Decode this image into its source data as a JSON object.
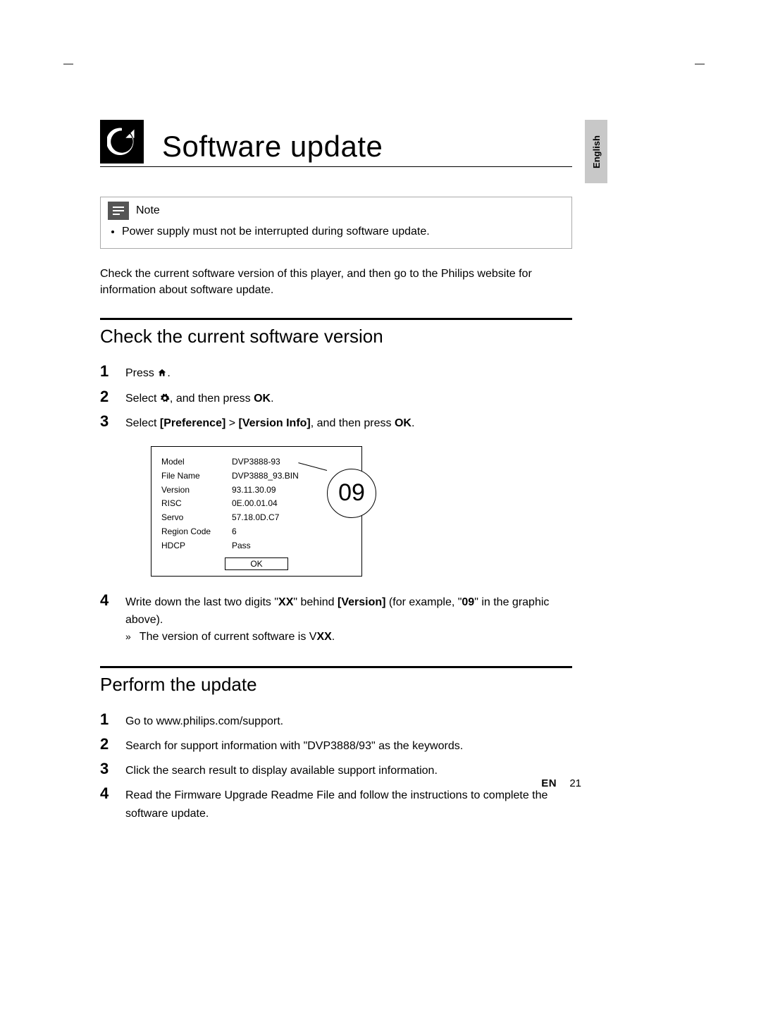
{
  "lang_tab": "English",
  "title": "Software update",
  "note": {
    "label": "Note",
    "item": "Power supply must not be interrupted during software update."
  },
  "intro": "Check the current software version of this player, and then go to the Philips website for information about software update.",
  "section1": {
    "title": "Check the current software version",
    "step1": "Press ",
    "step2_a": "Select ",
    "step2_b": ", and then press ",
    "step2_ok": "OK",
    "step3_a": "Select ",
    "step3_pref": "[Preference]",
    "step3_gt": " > ",
    "step3_ver": "[Version Info]",
    "step3_b": ", and then press ",
    "step3_ok": "OK",
    "step4_a": "Write down the last two digits \"",
    "step4_xx": "XX",
    "step4_b": "\" behind ",
    "step4_ver": "[Version]",
    "step4_c": " (for example, \"",
    "step4_09": "09",
    "step4_d": "\" in the graphic above).",
    "sub_a": "The version of current software is V",
    "sub_xx": "XX",
    "sub_b": "."
  },
  "panel": {
    "rows": [
      {
        "k": "Model",
        "v": "DVP3888-93"
      },
      {
        "k": "File Name",
        "v": "DVP3888_93.BIN"
      },
      {
        "k": "Version",
        "v": "93.11.30.09"
      },
      {
        "k": "RISC",
        "v": "0E.00.01.04"
      },
      {
        "k": "Servo",
        "v": "57.18.0D.C7"
      },
      {
        "k": "Region Code",
        "v": "6"
      },
      {
        "k": "HDCP",
        "v": "Pass"
      }
    ],
    "ok": "OK",
    "callout": "09"
  },
  "section2": {
    "title": "Perform the update",
    "step1": "Go to www.philips.com/support.",
    "step2": "Search for support information with \"DVP3888/93\" as the keywords.",
    "step3": "Click the search result to display available support information.",
    "step4": "Read the Firmware Upgrade Readme File and follow the instructions to complete the software update."
  },
  "footer": {
    "lang": "EN",
    "page": "21"
  }
}
